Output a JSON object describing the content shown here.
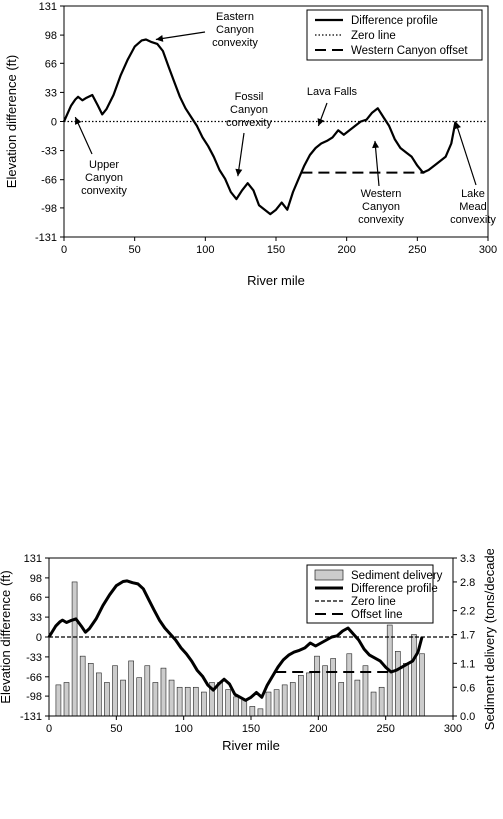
{
  "chart_data": [
    {
      "type": "line",
      "xlabel": "River mile",
      "ylabel": "Elevation difference (ft)",
      "xlim": [
        0,
        300
      ],
      "ylim": [
        -131,
        131
      ],
      "xticks": [
        "0",
        "50",
        "100",
        "150",
        "200",
        "250",
        "300"
      ],
      "yticks": [
        "131",
        "98",
        "66",
        "33",
        "0",
        "-33",
        "-66",
        "-98",
        "-131"
      ],
      "legend_position": "top-right",
      "series": [
        {
          "name": "Difference profile",
          "style": "solid",
          "x": [
            0,
            5,
            8,
            10,
            13,
            16,
            20,
            24,
            27,
            30,
            35,
            40,
            45,
            50,
            55,
            58,
            62,
            66,
            70,
            74,
            78,
            82,
            86,
            90,
            94,
            98,
            102,
            106,
            110,
            114,
            118,
            122,
            126,
            130,
            134,
            138,
            142,
            146,
            150,
            154,
            158,
            162,
            166,
            170,
            174,
            178,
            182,
            186,
            190,
            194,
            198,
            202,
            206,
            210,
            214,
            218,
            222,
            226,
            230,
            234,
            238,
            242,
            246,
            250,
            254,
            258,
            262,
            266,
            270,
            274,
            277
          ],
          "y": [
            0,
            18,
            25,
            28,
            24,
            27,
            30,
            18,
            8,
            14,
            30,
            52,
            70,
            85,
            92,
            93,
            90,
            88,
            80,
            62,
            45,
            28,
            15,
            5,
            -5,
            -18,
            -28,
            -40,
            -55,
            -65,
            -80,
            -88,
            -78,
            -70,
            -78,
            -95,
            -100,
            -105,
            -100,
            -92,
            -100,
            -80,
            -65,
            -50,
            -38,
            -30,
            -25,
            -22,
            -18,
            -10,
            -15,
            -10,
            -5,
            0,
            2,
            10,
            15,
            5,
            -5,
            -20,
            -30,
            -35,
            -40,
            -50,
            -58,
            -55,
            -50,
            -45,
            -40,
            -25,
            0
          ]
        },
        {
          "name": "Zero line",
          "style": "dotted",
          "x": [
            0,
            300
          ],
          "y": [
            0,
            0
          ]
        },
        {
          "name": "Western Canyon offset",
          "style": "dashed",
          "x": [
            168,
            255
          ],
          "y": [
            -58,
            -58
          ]
        }
      ],
      "annotations": [
        {
          "text": "Eastern\nCanyon\nconvexity",
          "x": 65,
          "y": 93
        },
        {
          "text": "Fossil\nCanyon\nconvexity",
          "x": 123,
          "y": -62
        },
        {
          "text": "Lava Falls",
          "x": 180,
          "y": -5
        },
        {
          "text": "Upper\nCanyon\nconvexity",
          "x": 8,
          "y": 5
        },
        {
          "text": "Western\nCanyon\nconvexity",
          "x": 220,
          "y": -22
        },
        {
          "text": "Lake\nMead\nconvexity",
          "x": 277,
          "y": 0
        }
      ]
    },
    {
      "type": "bar",
      "xlabel": "River mile",
      "ylabel": "Elevation difference (ft)",
      "y2label": "Sediment delivery (tons/decade)",
      "xlim": [
        0,
        300
      ],
      "ylim": [
        -131,
        131
      ],
      "y2lim": [
        0,
        3.3
      ],
      "xticks": [
        "0",
        "50",
        "100",
        "150",
        "200",
        "250",
        "300"
      ],
      "yticks": [
        "131",
        "98",
        "66",
        "33",
        "0",
        "-33",
        "-66",
        "-98",
        "-131"
      ],
      "y2ticks": [
        "3.3",
        "2.8",
        "2.2",
        "1.7",
        "1.1",
        "0.6",
        "0.0"
      ],
      "legend_position": "top-right",
      "bars": {
        "name": "Sediment delivery",
        "x": [
          7,
          13,
          19,
          25,
          31,
          37,
          43,
          49,
          55,
          61,
          67,
          73,
          79,
          85,
          91,
          97,
          103,
          109,
          115,
          121,
          127,
          133,
          139,
          145,
          151,
          157,
          163,
          169,
          175,
          181,
          187,
          193,
          199,
          205,
          211,
          217,
          223,
          229,
          235,
          241,
          247,
          253,
          259,
          265,
          271,
          277
        ],
        "values": [
          0.65,
          0.7,
          2.8,
          1.25,
          1.1,
          0.9,
          0.7,
          1.05,
          0.75,
          1.15,
          0.8,
          1.05,
          0.7,
          1.0,
          0.75,
          0.6,
          0.6,
          0.6,
          0.5,
          0.7,
          0.7,
          0.55,
          0.4,
          0.35,
          0.2,
          0.15,
          0.5,
          0.55,
          0.65,
          0.7,
          0.85,
          0.9,
          1.25,
          1.05,
          1.2,
          0.7,
          1.3,
          0.75,
          1.05,
          0.5,
          0.6,
          1.9,
          1.35,
          1.1,
          1.7,
          1.3
        ]
      },
      "series": [
        {
          "name": "Difference profile",
          "style": "solid-thick",
          "x": [
            0,
            5,
            8,
            10,
            13,
            16,
            20,
            24,
            27,
            30,
            35,
            40,
            45,
            50,
            55,
            58,
            62,
            66,
            70,
            74,
            78,
            82,
            86,
            90,
            94,
            98,
            102,
            106,
            110,
            114,
            118,
            122,
            126,
            130,
            134,
            138,
            142,
            146,
            150,
            154,
            158,
            162,
            166,
            170,
            174,
            178,
            182,
            186,
            190,
            194,
            198,
            202,
            206,
            210,
            214,
            218,
            222,
            226,
            230,
            234,
            238,
            242,
            246,
            250,
            254,
            258,
            262,
            266,
            270,
            274,
            277
          ],
          "y": [
            0,
            18,
            25,
            28,
            24,
            27,
            30,
            18,
            8,
            14,
            30,
            52,
            70,
            85,
            92,
            93,
            90,
            88,
            80,
            62,
            45,
            28,
            15,
            5,
            -5,
            -18,
            -28,
            -40,
            -55,
            -65,
            -80,
            -88,
            -78,
            -70,
            -78,
            -95,
            -100,
            -105,
            -100,
            -92,
            -100,
            -80,
            -65,
            -50,
            -38,
            -30,
            -25,
            -22,
            -18,
            -10,
            -15,
            -10,
            -5,
            0,
            2,
            10,
            15,
            5,
            -5,
            -20,
            -30,
            -35,
            -40,
            -50,
            -58,
            -55,
            -50,
            -45,
            -40,
            -25,
            0
          ]
        },
        {
          "name": "Zero line",
          "style": "dashed-fine",
          "x": [
            0,
            300
          ],
          "y": [
            0,
            0
          ]
        },
        {
          "name": "Offset line",
          "style": "dashed",
          "x": [
            168,
            255
          ],
          "y": [
            -58,
            -58
          ]
        }
      ]
    }
  ]
}
